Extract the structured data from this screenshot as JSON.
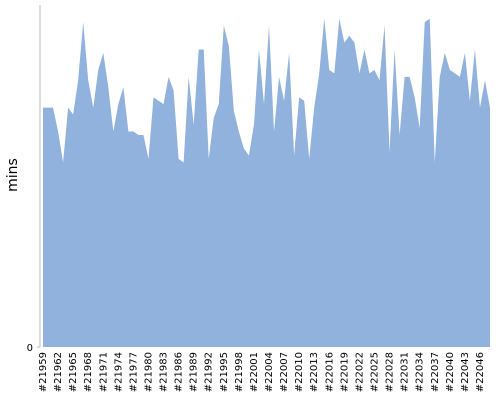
{
  "chart_data": {
    "type": "area",
    "y_label": "mins",
    "color": "#90b2dc",
    "categories": [
      "#21959",
      null,
      null,
      "#21962",
      null,
      null,
      "#21965",
      null,
      null,
      "#21968",
      null,
      null,
      "#21971",
      null,
      null,
      "#21974",
      null,
      null,
      "#21977",
      null,
      null,
      "#21980",
      null,
      null,
      "#21983",
      null,
      null,
      "#21986",
      null,
      null,
      "#21989",
      null,
      null,
      "#21992",
      null,
      null,
      "#21995",
      null,
      null,
      "#21998",
      null,
      null,
      "#22001",
      null,
      null,
      "#22004",
      null,
      null,
      "#22007",
      null,
      null,
      "#22010",
      null,
      null,
      "#22013",
      null,
      null,
      "#22016",
      null,
      null,
      "#22019",
      null,
      null,
      "#22022",
      null,
      null,
      "#22025",
      null,
      null,
      "#22028",
      null,
      null,
      "#22031",
      null,
      null,
      "#22034",
      null,
      null,
      "#22037",
      null,
      null,
      "#22040",
      null,
      null,
      "#22043",
      null,
      null,
      "#22046",
      null,
      null
    ],
    "values": [
      70,
      70,
      70,
      63,
      54,
      70,
      68,
      78,
      95,
      78,
      70,
      81,
      86,
      76,
      63,
      71,
      76,
      63,
      63,
      62,
      62,
      55,
      73,
      72,
      71,
      79,
      75,
      55,
      54,
      79,
      65,
      87,
      87,
      55,
      67,
      71,
      94,
      88,
      69,
      63,
      58,
      56,
      65,
      87,
      71,
      94,
      63,
      79,
      72,
      86,
      56,
      73,
      72,
      55,
      70,
      80,
      96,
      81,
      80,
      96,
      89,
      91,
      89,
      80,
      87,
      80,
      81,
      78,
      94,
      57,
      87,
      62,
      79,
      79,
      73,
      64,
      95,
      96,
      54,
      79,
      86,
      81,
      80,
      79,
      86,
      72,
      87,
      70,
      78,
      70
    ],
    "ylim": [
      0,
      100
    ],
    "yticks": [
      0
    ]
  }
}
